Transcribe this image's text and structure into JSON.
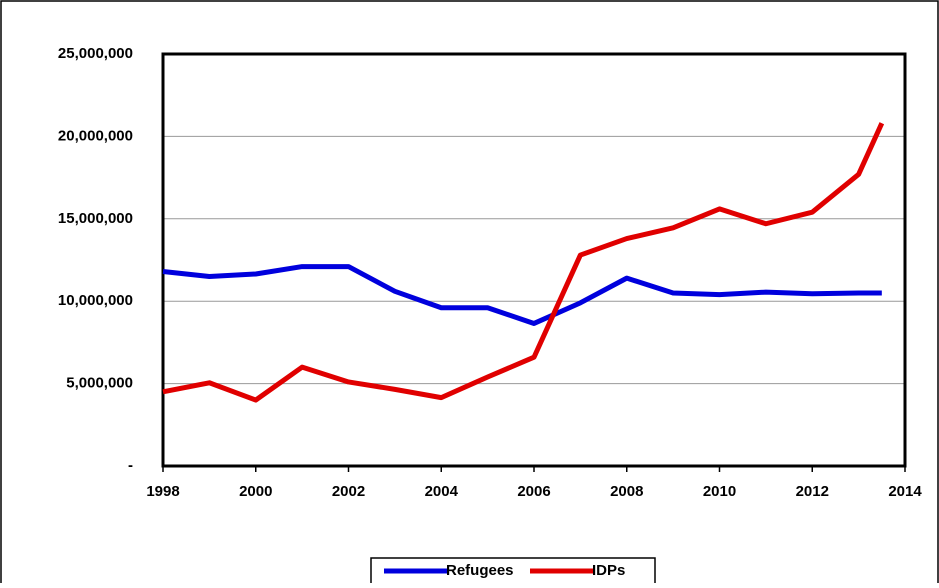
{
  "chart_data": {
    "type": "line",
    "x": [
      1998,
      1999,
      2000,
      2001,
      2002,
      2003,
      2004,
      2005,
      2006,
      2007,
      2008,
      2009,
      2010,
      2011,
      2012,
      2013,
      2013.5
    ],
    "series": [
      {
        "name": "Refugees",
        "color": "#0000dd",
        "values": [
          11800000,
          11500000,
          11650000,
          12100000,
          12100000,
          10600000,
          9600000,
          9600000,
          8650000,
          9900000,
          11400000,
          10500000,
          10400000,
          10550000,
          10450000,
          10500000,
          10500000
        ]
      },
      {
        "name": "IDPs",
        "color": "#e00000",
        "values": [
          4500000,
          5050000,
          4000000,
          6000000,
          5100000,
          4650000,
          4150000,
          5400000,
          6600000,
          12800000,
          13800000,
          14450000,
          15600000,
          14700000,
          15400000,
          17700000,
          20800000
        ]
      }
    ],
    "xlim": [
      1998,
      2014
    ],
    "xticks": [
      1998,
      2000,
      2002,
      2004,
      2006,
      2008,
      2010,
      2012,
      2014
    ],
    "ylim": [
      0,
      25000000
    ],
    "yticks": [
      {
        "value": 0,
        "label": "-"
      },
      {
        "value": 5000000,
        "label": "5,000,000"
      },
      {
        "value": 10000000,
        "label": "10,000,000"
      },
      {
        "value": 15000000,
        "label": "15,000,000"
      },
      {
        "value": 20000000,
        "label": "20,000,000"
      },
      {
        "value": 25000000,
        "label": "25,000,000"
      }
    ],
    "grid": true,
    "legend": "bottom"
  }
}
